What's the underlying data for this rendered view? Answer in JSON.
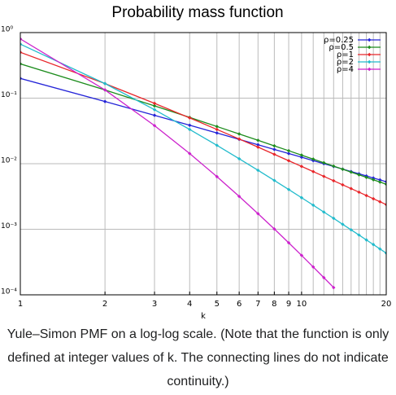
{
  "chart_data": {
    "type": "line",
    "title": "Probability mass function",
    "xlabel": "k",
    "log_x": true,
    "log_y": true,
    "grid": true,
    "legend": "upper right",
    "x": [
      1,
      2,
      3,
      4,
      5,
      6,
      7,
      8,
      9,
      10,
      11,
      12,
      13,
      14,
      15,
      16,
      17,
      18,
      19,
      20
    ],
    "xlim": [
      1,
      20
    ],
    "xticks": [
      1,
      2,
      3,
      4,
      5,
      6,
      7,
      8,
      9,
      10,
      20
    ],
    "xgrid": [
      1,
      2,
      3,
      4,
      5,
      6,
      7,
      8,
      9,
      10,
      11,
      12,
      13,
      14,
      15,
      16,
      17,
      18,
      19,
      20
    ],
    "ylim": [
      0.0001,
      1
    ],
    "yticks": [
      {
        "value": 1,
        "label": "10⁰"
      },
      {
        "value": 0.1,
        "label": "10⁻¹"
      },
      {
        "value": 0.01,
        "label": "10⁻²"
      },
      {
        "value": 0.001,
        "label": "10⁻³"
      },
      {
        "value": 0.0001,
        "label": "10⁻⁴"
      }
    ],
    "series": [
      {
        "name": "ρ=0.25",
        "color": "#2424d8",
        "values": [
          0.2,
          0.0889,
          0.0547,
          0.0386,
          0.0294,
          0.02353,
          0.01947,
          0.01652,
          0.01429,
          0.01255,
          0.01115,
          0.01001,
          0.00907,
          0.00827,
          0.00759,
          0.00701,
          0.0065,
          0.00605,
          0.00566,
          0.00531
        ]
      },
      {
        "name": "ρ=0.5",
        "color": "#1c8c1c",
        "values": [
          0.3333,
          0.1333,
          0.0762,
          0.0508,
          0.03694,
          0.02842,
          0.02273,
          0.01872,
          0.01577,
          0.01351,
          0.01175,
          0.01034,
          0.00919,
          0.00824,
          0.00744,
          0.00677,
          0.00619,
          0.00569,
          0.00525,
          0.00486
        ]
      },
      {
        "name": "ρ=1",
        "color": "#e8262a",
        "values": [
          0.5,
          0.1667,
          0.0833,
          0.05,
          0.0333,
          0.0238,
          0.0179,
          0.0139,
          0.0111,
          0.00909,
          0.00758,
          0.00641,
          0.00549,
          0.00476,
          0.00417,
          0.00368,
          0.00327,
          0.00292,
          0.00263,
          0.00238
        ]
      },
      {
        "name": "ρ=2",
        "color": "#22bbcc",
        "values": [
          0.6667,
          0.1667,
          0.0667,
          0.0333,
          0.01905,
          0.0119,
          0.00794,
          0.00556,
          0.00404,
          0.00303,
          0.00233,
          0.00183,
          0.00147,
          0.00119,
          0.00098,
          0.000817,
          0.000687,
          0.000585,
          0.000501,
          0.000433
        ]
      },
      {
        "name": "ρ=4",
        "color": "#cc22cc",
        "values": [
          0.8,
          0.1333,
          0.0381,
          0.01429,
          0.00635,
          0.00317,
          0.00173,
          0.00101,
          0.000622,
          0.0004,
          0.000266,
          0.000183,
          0.000129,
          null,
          null,
          null,
          null,
          null,
          null,
          null
        ]
      }
    ]
  },
  "caption": "Yule–Simon PMF on a log-log scale. (Note that the function is only defined at integer values of k. The connecting lines do not indicate continuity.)"
}
